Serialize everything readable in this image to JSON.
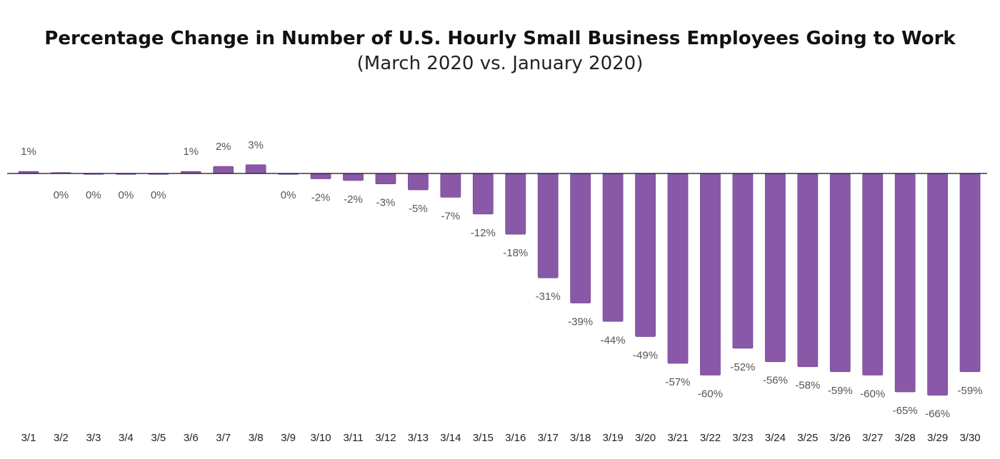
{
  "chart_data": {
    "type": "bar",
    "title": "Percentage Change in Number of U.S. Hourly Small Business Employees Going to Work",
    "subtitle": "(March 2020 vs. January 2020)",
    "xlabel": "",
    "ylabel": "",
    "categories": [
      "3/1",
      "3/2",
      "3/3",
      "3/4",
      "3/5",
      "3/6",
      "3/7",
      "3/8",
      "3/9",
      "3/10",
      "3/11",
      "3/12",
      "3/13",
      "3/14",
      "3/15",
      "3/16",
      "3/17",
      "3/18",
      "3/19",
      "3/20",
      "3/21",
      "3/22",
      "3/23",
      "3/24",
      "3/25",
      "3/26",
      "3/27",
      "3/28",
      "3/29",
      "3/30"
    ],
    "values": [
      0.6,
      0.2,
      -0.1,
      -0.2,
      -0.2,
      0.6,
      2.1,
      2.6,
      -0.2,
      -1.6,
      -2.1,
      -3.1,
      -4.9,
      -7.1,
      -12.1,
      -18.1,
      -31.1,
      -38.6,
      -44.1,
      -48.6,
      -56.6,
      -60.1,
      -52.1,
      -56.1,
      -57.6,
      -59.1,
      -60.1,
      -65.1,
      -66.1,
      -59.1
    ],
    "labels": [
      "1%",
      "0%",
      "0%",
      "0%",
      "0%",
      "1%",
      "2%",
      "3%",
      "0%",
      "-2%",
      "-2%",
      "-3%",
      "-5%",
      "-7%",
      "-12%",
      "-18%",
      "-31%",
      "-39%",
      "-44%",
      "-49%",
      "-57%",
      "-60%",
      "-52%",
      "-56%",
      "-58%",
      "-59%",
      "-60%",
      "-65%",
      "-66%",
      "-59%"
    ],
    "ylim": [
      -70,
      5
    ],
    "grid": false,
    "legend": "none",
    "bar_color": "#8959a8",
    "bar_stroke": "#7a4a99",
    "baseline_color": "#111111"
  }
}
